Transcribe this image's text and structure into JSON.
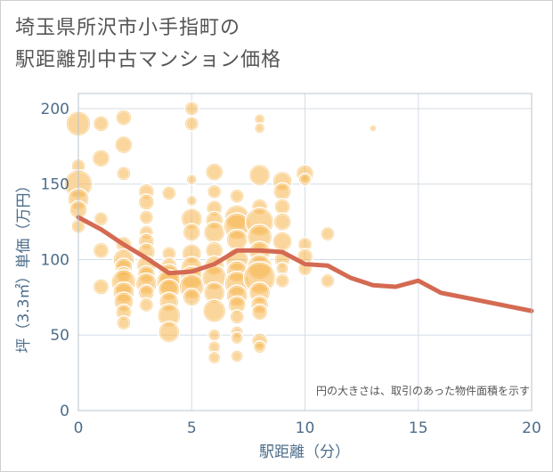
{
  "title_line1": "埼玉県所沢市小手指町の",
  "title_line2": "駅距離別中古マンション価格",
  "chart_data": {
    "type": "scatter",
    "title": "埼玉県所沢市小手指町の駅距離別中古マンション価格",
    "xlabel": "駅距離（分）",
    "ylabel": "坪（3.3㎡）単価（万円）",
    "xlim": [
      0,
      20
    ],
    "ylim": [
      0,
      210
    ],
    "xticks": [
      0,
      5,
      10,
      15,
      20
    ],
    "yticks": [
      0,
      50,
      100,
      150,
      200
    ],
    "grid": true,
    "note": "円の大きさは、取引のあった物件面積を示す",
    "bubble_color": "#f5b54a",
    "line_color": "#d46a52",
    "line": {
      "x": [
        0,
        1,
        2,
        3,
        4,
        5,
        6,
        7,
        8,
        9,
        10,
        11,
        12,
        13,
        14,
        15,
        16,
        17,
        18,
        19,
        20
      ],
      "y": [
        128,
        120,
        110,
        101,
        91,
        92,
        97,
        106,
        106,
        105,
        97,
        96,
        88,
        83,
        82,
        86,
        78,
        75,
        72,
        69,
        66
      ]
    },
    "points": [
      {
        "x": 0,
        "y": 190,
        "s": 14
      },
      {
        "x": 0,
        "y": 162,
        "s": 8
      },
      {
        "x": 0,
        "y": 150,
        "s": 16
      },
      {
        "x": 0,
        "y": 140,
        "s": 12
      },
      {
        "x": 0,
        "y": 133,
        "s": 10
      },
      {
        "x": 0,
        "y": 122,
        "s": 8
      },
      {
        "x": 1,
        "y": 190,
        "s": 9
      },
      {
        "x": 1,
        "y": 167,
        "s": 10
      },
      {
        "x": 1,
        "y": 127,
        "s": 8
      },
      {
        "x": 1,
        "y": 106,
        "s": 9
      },
      {
        "x": 1,
        "y": 82,
        "s": 9
      },
      {
        "x": 2,
        "y": 194,
        "s": 9
      },
      {
        "x": 2,
        "y": 176,
        "s": 10
      },
      {
        "x": 2,
        "y": 157,
        "s": 8
      },
      {
        "x": 2,
        "y": 110,
        "s": 9
      },
      {
        "x": 2,
        "y": 100,
        "s": 12
      },
      {
        "x": 2,
        "y": 95,
        "s": 10
      },
      {
        "x": 2,
        "y": 90,
        "s": 9
      },
      {
        "x": 2,
        "y": 85,
        "s": 14
      },
      {
        "x": 2,
        "y": 78,
        "s": 12
      },
      {
        "x": 2,
        "y": 72,
        "s": 11
      },
      {
        "x": 2,
        "y": 65,
        "s": 9
      },
      {
        "x": 2,
        "y": 58,
        "s": 8
      },
      {
        "x": 3,
        "y": 145,
        "s": 9
      },
      {
        "x": 3,
        "y": 138,
        "s": 9
      },
      {
        "x": 3,
        "y": 128,
        "s": 8
      },
      {
        "x": 3,
        "y": 118,
        "s": 8
      },
      {
        "x": 3,
        "y": 112,
        "s": 9
      },
      {
        "x": 3,
        "y": 105,
        "s": 10
      },
      {
        "x": 3,
        "y": 96,
        "s": 11
      },
      {
        "x": 3,
        "y": 90,
        "s": 10
      },
      {
        "x": 3,
        "y": 84,
        "s": 12
      },
      {
        "x": 3,
        "y": 78,
        "s": 9
      },
      {
        "x": 3,
        "y": 70,
        "s": 8
      },
      {
        "x": 4,
        "y": 144,
        "s": 8
      },
      {
        "x": 4,
        "y": 104,
        "s": 8
      },
      {
        "x": 4,
        "y": 96,
        "s": 9
      },
      {
        "x": 4,
        "y": 90,
        "s": 12
      },
      {
        "x": 4,
        "y": 85,
        "s": 14
      },
      {
        "x": 4,
        "y": 80,
        "s": 12
      },
      {
        "x": 4,
        "y": 72,
        "s": 11
      },
      {
        "x": 4,
        "y": 63,
        "s": 13
      },
      {
        "x": 4,
        "y": 52,
        "s": 12
      },
      {
        "x": 5,
        "y": 200,
        "s": 8
      },
      {
        "x": 5,
        "y": 190,
        "s": 8
      },
      {
        "x": 5,
        "y": 153,
        "s": 6
      },
      {
        "x": 5,
        "y": 139,
        "s": 6
      },
      {
        "x": 5,
        "y": 127,
        "s": 12
      },
      {
        "x": 5,
        "y": 118,
        "s": 10
      },
      {
        "x": 5,
        "y": 104,
        "s": 11
      },
      {
        "x": 5,
        "y": 95,
        "s": 12
      },
      {
        "x": 5,
        "y": 88,
        "s": 13
      },
      {
        "x": 5,
        "y": 82,
        "s": 14
      },
      {
        "x": 5,
        "y": 75,
        "s": 10
      },
      {
        "x": 6,
        "y": 158,
        "s": 10
      },
      {
        "x": 6,
        "y": 145,
        "s": 8
      },
      {
        "x": 6,
        "y": 134,
        "s": 9
      },
      {
        "x": 6,
        "y": 126,
        "s": 10
      },
      {
        "x": 6,
        "y": 118,
        "s": 12
      },
      {
        "x": 6,
        "y": 106,
        "s": 10
      },
      {
        "x": 6,
        "y": 96,
        "s": 11
      },
      {
        "x": 6,
        "y": 88,
        "s": 14
      },
      {
        "x": 6,
        "y": 78,
        "s": 12
      },
      {
        "x": 6,
        "y": 66,
        "s": 13
      },
      {
        "x": 6,
        "y": 50,
        "s": 7
      },
      {
        "x": 6,
        "y": 42,
        "s": 7
      },
      {
        "x": 6,
        "y": 35,
        "s": 7
      },
      {
        "x": 7,
        "y": 142,
        "s": 8
      },
      {
        "x": 7,
        "y": 128,
        "s": 14
      },
      {
        "x": 7,
        "y": 122,
        "s": 15
      },
      {
        "x": 7,
        "y": 113,
        "s": 12
      },
      {
        "x": 7,
        "y": 100,
        "s": 13
      },
      {
        "x": 7,
        "y": 92,
        "s": 12
      },
      {
        "x": 7,
        "y": 84,
        "s": 14
      },
      {
        "x": 7,
        "y": 76,
        "s": 12
      },
      {
        "x": 7,
        "y": 70,
        "s": 10
      },
      {
        "x": 7,
        "y": 62,
        "s": 8
      },
      {
        "x": 7,
        "y": 52,
        "s": 7
      },
      {
        "x": 7,
        "y": 48,
        "s": 7
      },
      {
        "x": 7,
        "y": 36,
        "s": 7
      },
      {
        "x": 8,
        "y": 193,
        "s": 6
      },
      {
        "x": 8,
        "y": 187,
        "s": 6
      },
      {
        "x": 8,
        "y": 156,
        "s": 12
      },
      {
        "x": 8,
        "y": 135,
        "s": 9
      },
      {
        "x": 8,
        "y": 125,
        "s": 16
      },
      {
        "x": 8,
        "y": 115,
        "s": 14
      },
      {
        "x": 8,
        "y": 105,
        "s": 12
      },
      {
        "x": 8,
        "y": 95,
        "s": 14
      },
      {
        "x": 8,
        "y": 88,
        "s": 18
      },
      {
        "x": 8,
        "y": 78,
        "s": 12
      },
      {
        "x": 8,
        "y": 70,
        "s": 10
      },
      {
        "x": 8,
        "y": 65,
        "s": 9
      },
      {
        "x": 8,
        "y": 46,
        "s": 9
      },
      {
        "x": 8,
        "y": 42,
        "s": 7
      },
      {
        "x": 9,
        "y": 152,
        "s": 11
      },
      {
        "x": 9,
        "y": 145,
        "s": 10
      },
      {
        "x": 9,
        "y": 135,
        "s": 9
      },
      {
        "x": 9,
        "y": 125,
        "s": 10
      },
      {
        "x": 9,
        "y": 112,
        "s": 11
      },
      {
        "x": 9,
        "y": 100,
        "s": 9
      },
      {
        "x": 9,
        "y": 94,
        "s": 7
      },
      {
        "x": 9,
        "y": 86,
        "s": 8
      },
      {
        "x": 10,
        "y": 157,
        "s": 10
      },
      {
        "x": 10,
        "y": 153,
        "s": 7
      },
      {
        "x": 10,
        "y": 110,
        "s": 8
      },
      {
        "x": 10,
        "y": 102,
        "s": 9
      },
      {
        "x": 10,
        "y": 94,
        "s": 8
      },
      {
        "x": 11,
        "y": 117,
        "s": 8
      },
      {
        "x": 11,
        "y": 86,
        "s": 8
      },
      {
        "x": 13,
        "y": 187,
        "s": 4
      }
    ]
  }
}
